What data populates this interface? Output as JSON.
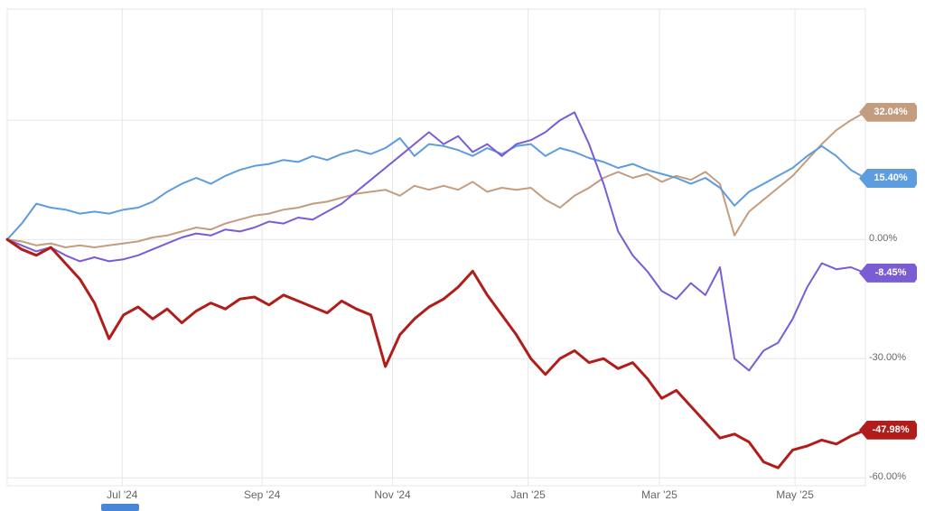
{
  "chart_data": {
    "type": "line",
    "x_tick_labels": [
      "Jul '24",
      "Sep '24",
      "Nov '24",
      "Jan '25",
      "Mar '25",
      "May '25"
    ],
    "x_tick_positions": [
      13.4,
      29.7,
      44.9,
      60.7,
      76.0,
      91.8
    ],
    "y_ticks": [
      {
        "value": 0,
        "label": "0.00%"
      },
      {
        "value": -30,
        "label": "-30.00%"
      },
      {
        "value": -60,
        "label": "-60.00%"
      }
    ],
    "ylim": [
      -62,
      58
    ],
    "grid_y_values": [
      30,
      0,
      -30,
      -60
    ],
    "grid": true,
    "legend": "none",
    "colors": {
      "grid": "#e7e7e7",
      "axis_label": "#666666",
      "plot_border": "#e7e7e7"
    },
    "series": [
      {
        "name": "tan-series",
        "color": "#c49d7f",
        "width": 2,
        "end_label": "32.04%",
        "values": [
          0,
          -0.5,
          -1.5,
          -1,
          -2,
          -1.5,
          -2,
          -1.5,
          -1,
          -0.5,
          0.5,
          1,
          2,
          3,
          2.5,
          4,
          5,
          6,
          6.5,
          7.5,
          8,
          9,
          9.5,
          10.5,
          11.5,
          12,
          12.5,
          11,
          13.5,
          12.5,
          13.5,
          12.5,
          14.5,
          12,
          13,
          12.5,
          13,
          10,
          8,
          11,
          13,
          15.5,
          17,
          15.5,
          16.5,
          14.5,
          16,
          15,
          17,
          14,
          1,
          7,
          10,
          13,
          16,
          20,
          24,
          27.5,
          30,
          32.04
        ]
      },
      {
        "name": "blue-series",
        "color": "#5d9cdf",
        "width": 2,
        "end_label": "15.40%",
        "values": [
          0,
          4,
          9,
          8,
          7.5,
          6.5,
          7,
          6.5,
          7.5,
          8,
          9.5,
          12,
          14,
          15.5,
          14,
          16,
          17.5,
          18.5,
          19,
          20,
          19.5,
          21,
          20,
          21.5,
          22.5,
          21.5,
          23,
          25.5,
          21,
          24,
          23.5,
          22.5,
          21,
          23,
          21.5,
          23.5,
          24,
          21,
          23,
          22,
          20.5,
          19.5,
          18,
          19,
          17.5,
          16.5,
          15.5,
          14,
          15.5,
          13,
          8.5,
          12,
          14,
          16,
          18,
          21,
          23.5,
          21,
          17.5,
          15.4
        ]
      },
      {
        "name": "purple-series",
        "color": "#7a5cd4",
        "width": 2,
        "end_label": "-8.45%",
        "values": [
          0,
          -1.5,
          -3,
          -2,
          -4,
          -5.5,
          -4.5,
          -5.5,
          -5,
          -4,
          -2.5,
          -1,
          0.5,
          1.5,
          1,
          2.5,
          2,
          3,
          4.5,
          4,
          5.5,
          5,
          7,
          9,
          12,
          15,
          18,
          21,
          24,
          27,
          24,
          26,
          22,
          24,
          21,
          24,
          25,
          27,
          30,
          32,
          24,
          14,
          2,
          -4,
          -8,
          -13,
          -15,
          -11,
          -14,
          -7,
          -30,
          -33,
          -28,
          -26,
          -20,
          -12,
          -6,
          -7.5,
          -7,
          -8.45
        ]
      },
      {
        "name": "red-series",
        "color": "#b01d1a",
        "width": 3,
        "end_label": "-47.98%",
        "values": [
          0,
          -2.5,
          -4,
          -2,
          -6,
          -10,
          -16,
          -25,
          -19,
          -17,
          -20,
          -17.5,
          -21,
          -18,
          -16,
          -17.5,
          -15,
          -14.5,
          -16.5,
          -14,
          -15.5,
          -17,
          -18.5,
          -15.5,
          -17.5,
          -19,
          -32,
          -24,
          -20,
          -17,
          -15,
          -12,
          -8,
          -14,
          -19,
          -24,
          -30,
          -34,
          -30,
          -28,
          -31,
          -30,
          -32.5,
          -31,
          -35,
          -40,
          -38,
          -42,
          -46,
          -50,
          -49,
          -51,
          -56,
          -57.5,
          -53,
          -52,
          -50.5,
          -51.5,
          -49.5,
          -47.98
        ]
      }
    ]
  },
  "ui": {
    "bottom_bar_color": "#4a86d8"
  }
}
